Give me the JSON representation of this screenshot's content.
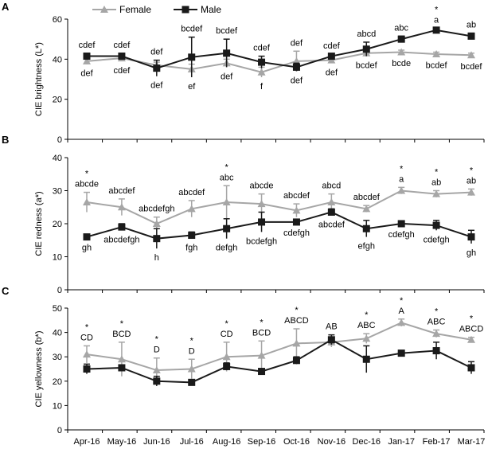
{
  "legend": {
    "female_label": "Female",
    "male_label": "Male"
  },
  "colors": {
    "female": "#a6a6a6",
    "male": "#1a1a1a",
    "axis": "#000000"
  },
  "chart_data": [
    {
      "type": "line",
      "panel_label": "A",
      "ylabel": "CIE brightness (L*)",
      "ylim": [
        0,
        60
      ],
      "yticks": [
        "0",
        "20",
        "40",
        "60"
      ],
      "categories": [
        "Apr-16",
        "May-16",
        "Jun-16",
        "Jul-16",
        "Aug-16",
        "Sep-16",
        "Oct-16",
        "Nov-16",
        "Dec-16",
        "Jan-17",
        "Feb-17",
        "Mar-17"
      ],
      "series": [
        {
          "name": "Female",
          "values": [
            39.0,
            40.5,
            37.0,
            35.0,
            38.0,
            33.5,
            39.0,
            39.5,
            43.0,
            43.5,
            42.5,
            42.0
          ],
          "errors": [
            1.5,
            1.5,
            1.5,
            2.5,
            2.0,
            2.5,
            5.0,
            1.5,
            1.5,
            1.0,
            1.0,
            1.0
          ]
        },
        {
          "name": "Male",
          "values": [
            41.5,
            41.5,
            35.5,
            41.0,
            43.0,
            38.5,
            36.0,
            41.5,
            45.0,
            50.0,
            54.5,
            51.5
          ],
          "errors": [
            1.5,
            1.5,
            4.0,
            10.0,
            7.0,
            3.0,
            2.0,
            1.0,
            3.5,
            1.5,
            1.0,
            1.5
          ]
        }
      ],
      "annotations_above": [
        "cdef",
        "cdef",
        "def",
        "bcdef",
        "bcdef",
        "cdef",
        "def",
        "cdef",
        "abcd",
        "abc",
        "a",
        "ab"
      ],
      "annotations_below": [
        "def",
        "cdef",
        "def",
        "ef",
        "def",
        "f",
        "def",
        "def",
        "bcdef",
        "bcde",
        "bcdef",
        "bcdef"
      ],
      "asterisks": [
        false,
        false,
        false,
        false,
        false,
        false,
        false,
        false,
        false,
        false,
        true,
        false
      ]
    },
    {
      "type": "line",
      "panel_label": "B",
      "ylabel": "CIE redness (a*)",
      "ylim": [
        0,
        40
      ],
      "yticks": [
        "0",
        "10",
        "20",
        "30",
        "40"
      ],
      "categories": [
        "Apr-16",
        "May-16",
        "Jun-16",
        "Jul-16",
        "Aug-16",
        "Sep-16",
        "Oct-16",
        "Nov-16",
        "Dec-16",
        "Jan-17",
        "Feb-17",
        "Mar-17"
      ],
      "series": [
        {
          "name": "Female",
          "values": [
            26.5,
            25.0,
            20.0,
            24.5,
            26.5,
            26.0,
            24.0,
            26.5,
            24.5,
            30.0,
            29.0,
            29.5
          ],
          "errors": [
            3.0,
            2.5,
            2.0,
            2.5,
            5.0,
            3.0,
            2.0,
            2.5,
            1.0,
            1.0,
            1.0,
            1.0
          ]
        },
        {
          "name": "Male",
          "values": [
            16.0,
            19.0,
            15.5,
            16.5,
            18.5,
            20.5,
            20.5,
            23.5,
            18.5,
            20.0,
            19.5,
            16.0
          ],
          "errors": [
            0.5,
            1.0,
            3.0,
            1.0,
            3.0,
            3.0,
            0.5,
            1.0,
            2.5,
            0.5,
            1.5,
            2.0
          ]
        }
      ],
      "annotations_above": [
        "abcde",
        "abcdef",
        "abcdefgh",
        "abcdef",
        "abc",
        "abcde",
        "abcdef",
        "abcd",
        "abcdef",
        "a",
        "ab",
        "ab"
      ],
      "annotations_below": [
        "gh",
        "abcdefgh",
        "h",
        "fgh",
        "defgh",
        "bcdefgh",
        "cdefgh",
        "abcdef",
        "efgh",
        "cdefgh",
        "cdefgh",
        "gh"
      ],
      "asterisks": [
        true,
        false,
        false,
        false,
        true,
        false,
        false,
        false,
        false,
        true,
        true,
        true
      ]
    },
    {
      "type": "line",
      "panel_label": "C",
      "ylabel": "CIE yellowness (b*)",
      "ylim": [
        0,
        50
      ],
      "yticks": [
        "0",
        "10",
        "20",
        "30",
        "40",
        "50"
      ],
      "categories": [
        "Apr-16",
        "May-16",
        "Jun-16",
        "Jul-16",
        "Aug-16",
        "Sep-16",
        "Oct-16",
        "Nov-16",
        "Dec-16",
        "Jan-17",
        "Feb-17",
        "Mar-17"
      ],
      "series": [
        {
          "name": "Female",
          "values": [
            31.0,
            29.0,
            24.5,
            25.0,
            30.0,
            30.5,
            35.5,
            36.0,
            37.5,
            44.0,
            39.5,
            37.0
          ],
          "errors": [
            3.5,
            7.0,
            5.0,
            4.0,
            6.0,
            6.0,
            6.0,
            2.0,
            2.0,
            1.5,
            1.5,
            1.0
          ]
        },
        {
          "name": "Male",
          "values": [
            25.0,
            25.5,
            20.0,
            19.5,
            26.0,
            24.0,
            28.5,
            37.0,
            29.0,
            31.5,
            32.5,
            25.5
          ],
          "errors": [
            2.0,
            1.0,
            2.0,
            1.0,
            1.5,
            1.0,
            1.5,
            2.0,
            5.5,
            1.0,
            3.5,
            2.5
          ]
        }
      ],
      "annotations_above": [
        "CD",
        "BCD",
        "D",
        "D",
        "CD",
        "BCD",
        "ABCD",
        "AB",
        "ABC",
        "A",
        "ABC",
        "ABCD"
      ],
      "annotations_below": [
        "",
        "",
        "",
        "",
        "",
        "",
        "",
        "",
        "",
        "",
        "",
        ""
      ],
      "asterisks": [
        true,
        true,
        true,
        true,
        true,
        true,
        true,
        false,
        true,
        true,
        true,
        true
      ]
    }
  ]
}
